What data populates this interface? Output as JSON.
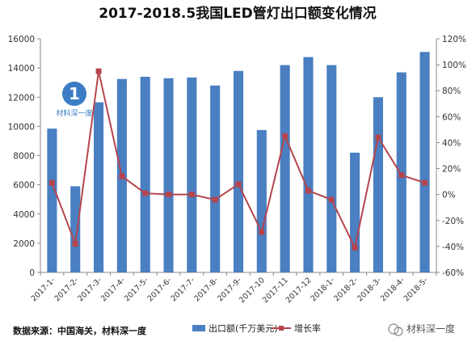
{
  "chart_data": {
    "type": "bar",
    "title": "2017-2018.5我国LED管灯出口额变化情况",
    "categories": [
      "2017-1-",
      "2017-2-",
      "2017-3-",
      "2017-4-",
      "2017-5-",
      "2017-6-",
      "2017-7-",
      "2017-8-",
      "2017-9-",
      "2017-10",
      "2017-11",
      "2017-12",
      "2018-1-",
      "2018-2-",
      "2018-3-",
      "2018-4-",
      "2018-5-"
    ],
    "series": [
      {
        "name": "出口额(千万美元)",
        "type": "bar",
        "axis": "left",
        "color": "#4a7fc1",
        "values": [
          9850,
          5900,
          11650,
          13250,
          13400,
          13300,
          13350,
          12800,
          13800,
          9750,
          14200,
          14750,
          14200,
          8200,
          12000,
          13700,
          15100
        ]
      },
      {
        "name": "增长率",
        "type": "line",
        "axis": "right",
        "color": "#b5454c",
        "values": [
          9,
          -38,
          95,
          14,
          1,
          0,
          0,
          -4,
          8,
          -29,
          45,
          3,
          -4,
          -41,
          44,
          15,
          9
        ]
      }
    ],
    "ylim_left": [
      0,
      16000
    ],
    "yticks_left": [
      "0",
      "2000",
      "4000",
      "6000",
      "8000",
      "10000",
      "12000",
      "14000",
      "16000"
    ],
    "ylim_right": [
      -60,
      120
    ],
    "yticks_right": [
      "-60%",
      "-40%",
      "-20%",
      "0%",
      "20%",
      "40%",
      "60%",
      "80%",
      "100%",
      "120%"
    ],
    "grid": false,
    "legend_position": "bottom"
  },
  "source_note": "数据来源：中国海关，材料深一度",
  "watermark": "材料深一度",
  "logo": {
    "glyph": "1",
    "text": "材料深一度"
  }
}
